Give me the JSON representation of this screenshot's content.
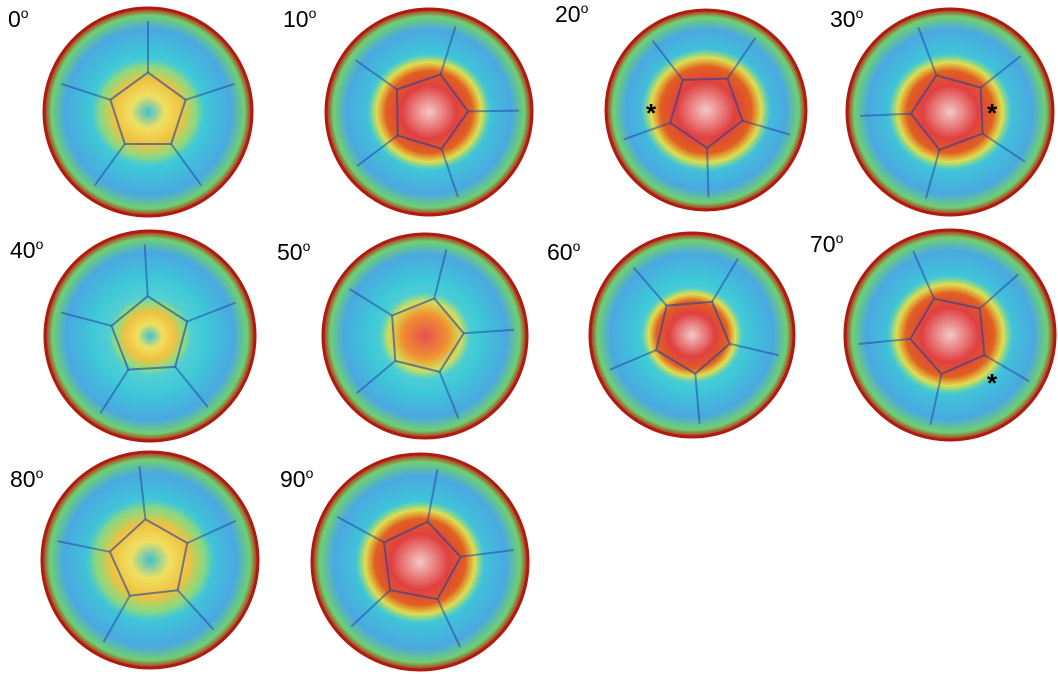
{
  "panels": [
    {
      "label": "0",
      "superscript": "o"
    },
    {
      "label": "10",
      "superscript": "o"
    },
    {
      "label": "20",
      "superscript": "o",
      "marker": "*"
    },
    {
      "label": "30",
      "superscript": "o",
      "marker": "*"
    },
    {
      "label": "40",
      "superscript": "o"
    },
    {
      "label": "50",
      "superscript": "o"
    },
    {
      "label": "60",
      "superscript": "o"
    },
    {
      "label": "70",
      "superscript": "o",
      "marker": "*"
    },
    {
      "label": "80",
      "superscript": "o"
    },
    {
      "label": "90",
      "superscript": "o"
    }
  ]
}
